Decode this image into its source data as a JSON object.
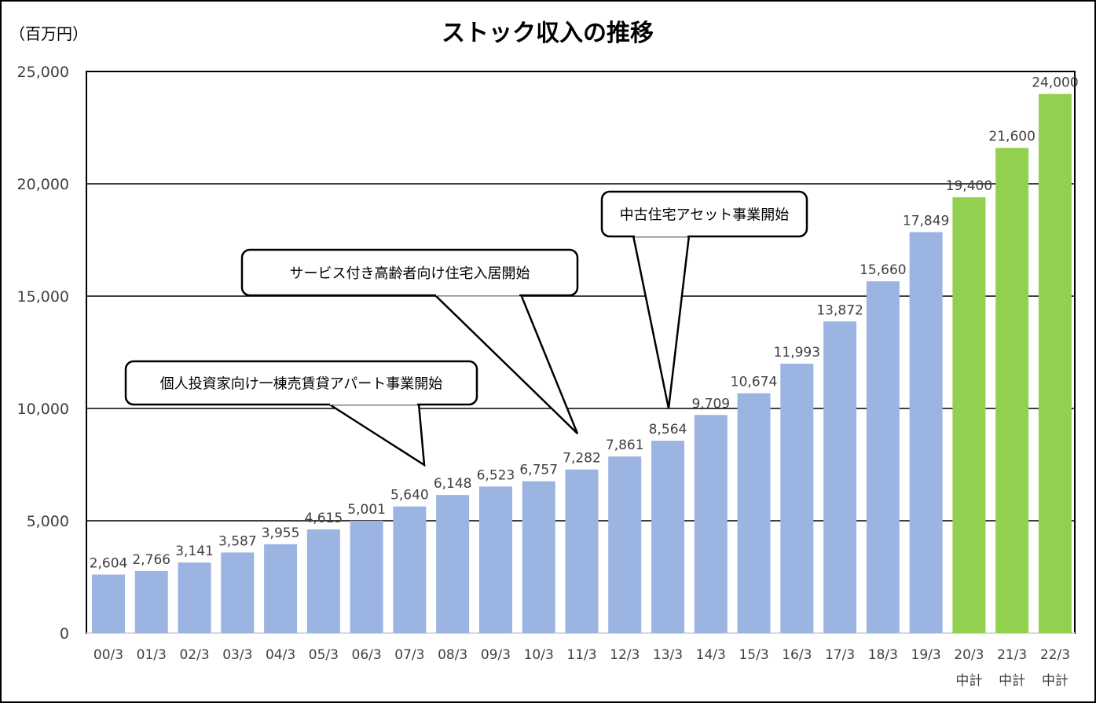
{
  "chart_data": {
    "type": "bar",
    "title": "ストック収入の推移",
    "unit_label": "（百万円）",
    "ylim": [
      0,
      25000
    ],
    "yticks": [
      0,
      5000,
      10000,
      15000,
      20000,
      25000
    ],
    "ytick_labels": [
      "0",
      "5,000",
      "10,000",
      "15,000",
      "20,000",
      "25,000"
    ],
    "grid": true,
    "categories": [
      "00/3",
      "01/3",
      "02/3",
      "03/3",
      "04/3",
      "05/3",
      "06/3",
      "07/3",
      "08/3",
      "09/3",
      "10/3",
      "11/3",
      "12/3",
      "13/3",
      "14/3",
      "15/3",
      "16/3",
      "17/3",
      "18/3",
      "19/3",
      "20/3",
      "21/3",
      "22/3"
    ],
    "category_sublabels": [
      "",
      "",
      "",
      "",
      "",
      "",
      "",
      "",
      "",
      "",
      "",
      "",
      "",
      "",
      "",
      "",
      "",
      "",
      "",
      "",
      "中計",
      "中計",
      "中計"
    ],
    "values": [
      2604,
      2766,
      3141,
      3587,
      3955,
      4615,
      5001,
      5640,
      6148,
      6523,
      6757,
      7282,
      7861,
      8564,
      9709,
      10674,
      11993,
      13872,
      15660,
      17849,
      19400,
      21600,
      24000
    ],
    "value_labels": [
      "2,604",
      "2,766",
      "3,141",
      "3,587",
      "3,955",
      "4,615",
      "5,001",
      "5,640",
      "6,148",
      "6,523",
      "6,757",
      "7,282",
      "7,861",
      "8,564",
      "9,709",
      "10,674",
      "11,993",
      "13,872",
      "15,660",
      "17,849",
      "19,400",
      "21,600",
      "24,000"
    ],
    "bar_kinds": [
      "actual",
      "actual",
      "actual",
      "actual",
      "actual",
      "actual",
      "actual",
      "actual",
      "actual",
      "actual",
      "actual",
      "actual",
      "actual",
      "actual",
      "actual",
      "actual",
      "actual",
      "actual",
      "actual",
      "actual",
      "plan",
      "plan",
      "plan"
    ],
    "colors": {
      "actual": "#9BB4E2",
      "plan": "#92D050"
    },
    "annotations": [
      {
        "text": "個人投資家向け一棟売賃貸アパート事業開始",
        "category": "07/3"
      },
      {
        "text": "サービス付き高齢者向け住宅入居開始",
        "category": "11/3"
      },
      {
        "text": "中古住宅アセット事業開始",
        "category": "13/3"
      }
    ]
  }
}
